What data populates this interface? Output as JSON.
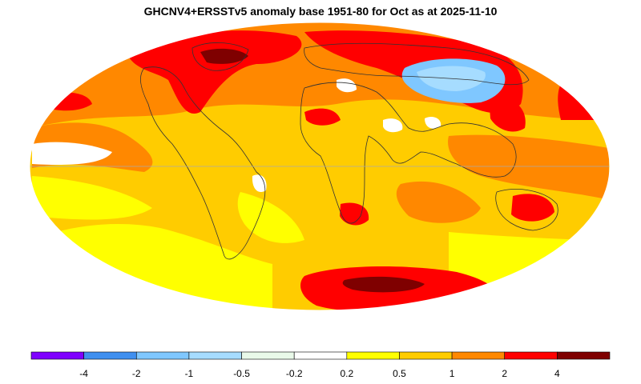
{
  "title": "GHCNV4+ERSSTv5 anomaly base 1951-80 for Oct as at 2025-11-10",
  "legend": {
    "colors": [
      "#7f00ff",
      "#3f8fef",
      "#7fc7ff",
      "#a6dcff",
      "#e9f9e9",
      "#ffffff",
      "#ffff00",
      "#ffcc00",
      "#ff8800",
      "#ff0000",
      "#7f0000"
    ],
    "ticks": [
      "-4",
      "-2",
      "-1",
      "-0.5",
      "-0.2",
      "0.2",
      "0.5",
      "1",
      "2",
      "4"
    ]
  },
  "map": {
    "projection": "mollweide",
    "base_color": "#ffcc00",
    "regions": [
      {
        "name": "north-atlantic-warm",
        "color": "#ff0000"
      },
      {
        "name": "greenland-hot",
        "color": "#7f0000"
      },
      {
        "name": "arctic-siberia-warm",
        "color": "#ff0000"
      },
      {
        "name": "central-asia-cool",
        "color": "#7fc7ff"
      },
      {
        "name": "southern-ocean-warm",
        "color": "#ff0000"
      },
      {
        "name": "southern-ocean-hot",
        "color": "#7f0000"
      },
      {
        "name": "pacific-cool",
        "color": "#ffff00"
      }
    ]
  }
}
